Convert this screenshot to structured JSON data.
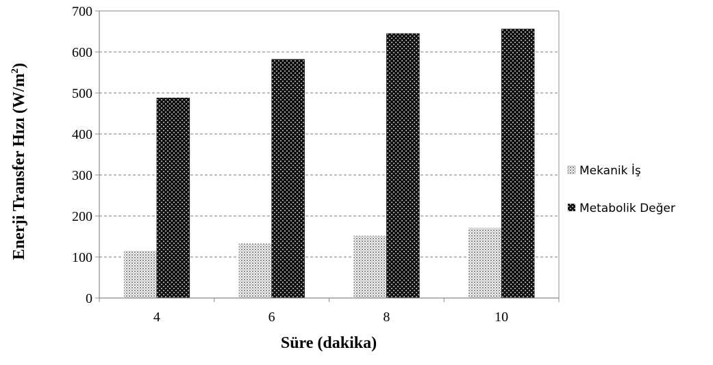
{
  "chart_data": {
    "type": "bar",
    "categories": [
      "4",
      "6",
      "8",
      "10"
    ],
    "series": [
      {
        "name": "Mekanik İş",
        "values": [
          115,
          133,
          152,
          171
        ],
        "pattern": "light-dotted"
      },
      {
        "name": "Metabolik Değer",
        "values": [
          488,
          582,
          645,
          656
        ],
        "pattern": "dark-dotted"
      }
    ],
    "xlabel": "Süre (dakika)",
    "ylabel_main": "Enerji Transfer Hızı (W/m",
    "ylabel_sup": "2",
    "ylabel_end": ")",
    "ylim": [
      0,
      700
    ],
    "yticks": [
      "0",
      "100",
      "200",
      "300",
      "400",
      "500",
      "600",
      "700"
    ],
    "grid": true,
    "legend_position": "right"
  }
}
